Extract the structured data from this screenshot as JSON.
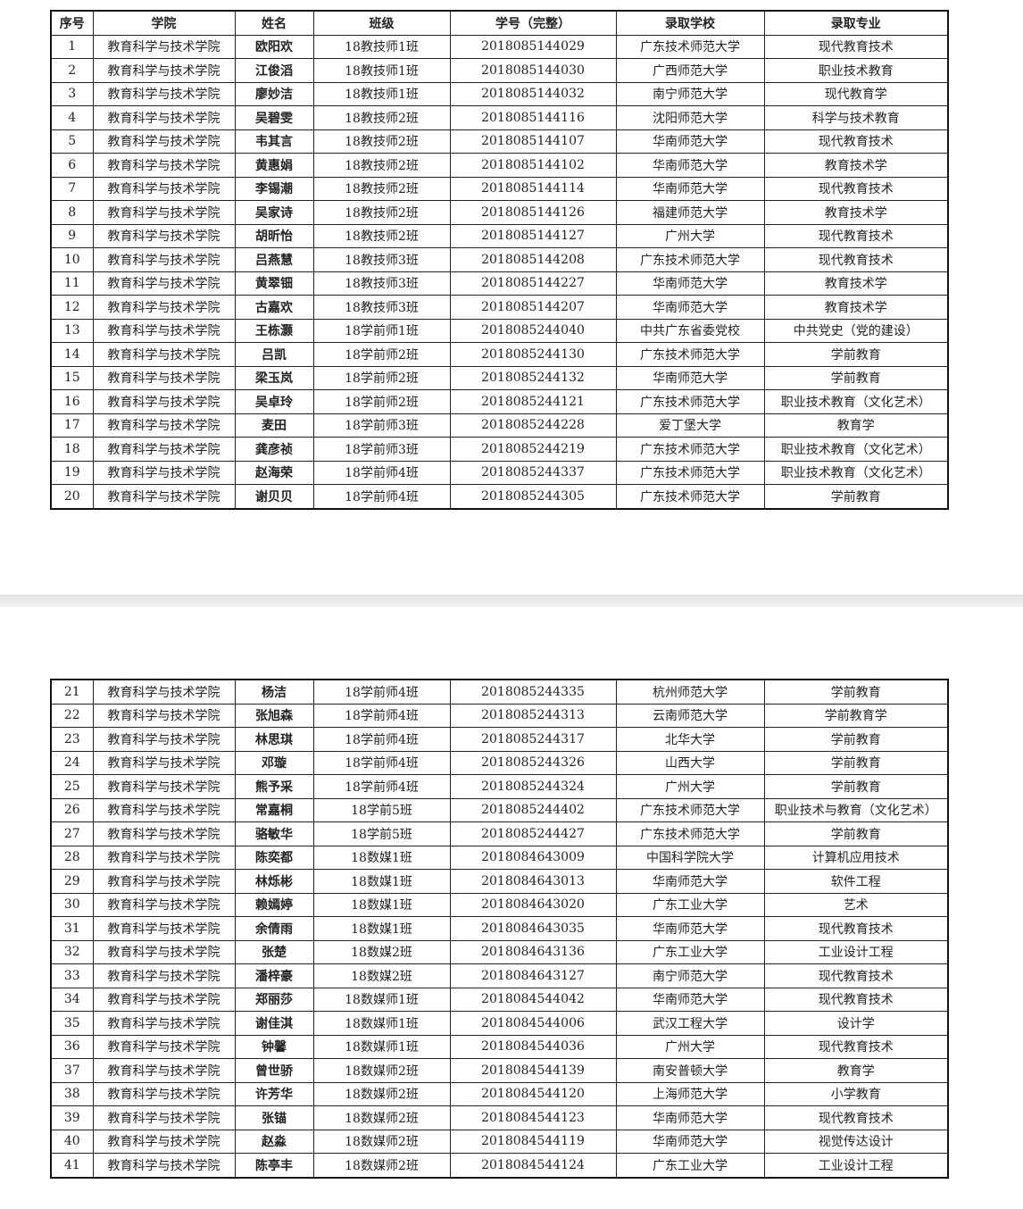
{
  "headers": [
    "序号",
    "学院",
    "姓名",
    "班级",
    "学号（完整）",
    "录取学校",
    "录取专业"
  ],
  "page1_rows": [
    [
      "1",
      "教育科学与技术学院",
      "欧阳欢",
      "18教技师1班",
      "2018085144029",
      "广东技术师范大学",
      "现代教育技术"
    ],
    [
      "2",
      "教育科学与技术学院",
      "江俊滔",
      "18教技师1班",
      "2018085144030",
      "广西师范大学",
      "职业技术教育"
    ],
    [
      "3",
      "教育科学与技术学院",
      "廖妙洁",
      "18教技师1班",
      "2018085144032",
      "南宁师范大学",
      "现代教育学"
    ],
    [
      "4",
      "教育科学与技术学院",
      "吴碧雯",
      "18教技师2班",
      "2018085144116",
      "沈阳师范大学",
      "科学与技术教育"
    ],
    [
      "5",
      "教育科学与技术学院",
      "韦其言",
      "18教技师2班",
      "2018085144107",
      "华南师范大学",
      "现代教育技术"
    ],
    [
      "6",
      "教育科学与技术学院",
      "黄惠娟",
      "18教技师2班",
      "2018085144102",
      "华南师范大学",
      "教育技术学"
    ],
    [
      "7",
      "教育科学与技术学院",
      "李锡潮",
      "18教技师2班",
      "2018085144114",
      "华南师范大学",
      "现代教育技术"
    ],
    [
      "8",
      "教育科学与技术学院",
      "吴家诗",
      "18教技师2班",
      "2018085144126",
      "福建师范大学",
      "教育技术学"
    ],
    [
      "9",
      "教育科学与技术学院",
      "胡昕怡",
      "18教技师2班",
      "2018085144127",
      "广州大学",
      "现代教育技术"
    ],
    [
      "10",
      "教育科学与技术学院",
      "吕燕慧",
      "18教技师3班",
      "2018085144208",
      "广东技术师范大学",
      "现代教育技术"
    ],
    [
      "11",
      "教育科学与技术学院",
      "黄翠钿",
      "18教技师3班",
      "2018085144227",
      "华南师范大学",
      "教育技术学"
    ],
    [
      "12",
      "教育科学与技术学院",
      "古嘉欢",
      "18教技师3班",
      "2018085144207",
      "华南师范大学",
      "教育技术学"
    ],
    [
      "13",
      "教育科学与技术学院",
      "王栋灏",
      "18学前师1班",
      "2018085244040",
      "中共广东省委党校",
      "中共党史（党的建设）"
    ],
    [
      "14",
      "教育科学与技术学院",
      "吕凯",
      "18学前师2班",
      "2018085244130",
      "广东技术师范大学",
      "学前教育"
    ],
    [
      "15",
      "教育科学与技术学院",
      "梁玉岚",
      "18学前师2班",
      "2018085244132",
      "华南师范大学",
      "学前教育"
    ],
    [
      "16",
      "教育科学与技术学院",
      "吴卓玲",
      "18学前师2班",
      "2018085244121",
      "广东技术师范大学",
      "职业技术教育（文化艺术）"
    ],
    [
      "17",
      "教育科学与技术学院",
      "麦田",
      "18学前师3班",
      "2018085244228",
      "爱丁堡大学",
      "教育学"
    ],
    [
      "18",
      "教育科学与技术学院",
      "龚彦祯",
      "18学前师3班",
      "2018085244219",
      "广东技术师范大学",
      "职业技术教育（文化艺术）"
    ],
    [
      "19",
      "教育科学与技术学院",
      "赵海荣",
      "18学前师4班",
      "2018085244337",
      "广东技术师范大学",
      "职业技术教育（文化艺术）"
    ],
    [
      "20",
      "教育科学与技术学院",
      "谢贝贝",
      "18学前师4班",
      "2018085244305",
      "广东技术师范大学",
      "学前教育"
    ]
  ],
  "page2_rows": [
    [
      "21",
      "教育科学与技术学院",
      "杨洁",
      "18学前师4班",
      "2018085244335",
      "杭州师范大学",
      "学前教育"
    ],
    [
      "22",
      "教育科学与技术学院",
      "张旭森",
      "18学前师4班",
      "2018085244313",
      "云南师范大学",
      "学前教育学"
    ],
    [
      "23",
      "教育科学与技术学院",
      "林思琪",
      "18学前师4班",
      "2018085244317",
      "北华大学",
      "学前教育"
    ],
    [
      "24",
      "教育科学与技术学院",
      "邓璇",
      "18学前师4班",
      "2018085244326",
      "山西大学",
      "学前教育"
    ],
    [
      "25",
      "教育科学与技术学院",
      "熊予采",
      "18学前师4班",
      "2018085244324",
      "广州大学",
      "学前教育"
    ],
    [
      "26",
      "教育科学与技术学院",
      "常嘉桐",
      "18学前5班",
      "2018085244402",
      "广东技术师范大学",
      "职业技术与教育（文化艺术）"
    ],
    [
      "27",
      "教育科学与技术学院",
      "骆敏华",
      "18学前5班",
      "2018085244427",
      "广东技术师范大学",
      "学前教育"
    ],
    [
      "28",
      "教育科学与技术学院",
      "陈奕都",
      "18数媒1班",
      "2018084643009",
      "中国科学院大学",
      "计算机应用技术"
    ],
    [
      "29",
      "教育科学与技术学院",
      "林烁彬",
      "18数媒1班",
      "2018084643013",
      "华南师范大学",
      "软件工程"
    ],
    [
      "30",
      "教育科学与技术学院",
      "赖嫣婷",
      "18数媒1班",
      "2018084643020",
      "广东工业大学",
      "艺术"
    ],
    [
      "31",
      "教育科学与技术学院",
      "余倩雨",
      "18数媒1班",
      "2018084643035",
      "华南师范大学",
      "现代教育技术"
    ],
    [
      "32",
      "教育科学与技术学院",
      "张楚",
      "18数媒2班",
      "2018084643136",
      "广东工业大学",
      "工业设计工程"
    ],
    [
      "33",
      "教育科学与技术学院",
      "潘梓豪",
      "18数媒2班",
      "2018084643127",
      "南宁师范大学",
      "现代教育技术"
    ],
    [
      "34",
      "教育科学与技术学院",
      "郑丽莎",
      "18数媒师1班",
      "2018084544042",
      "华南师范大学",
      "现代教育技术"
    ],
    [
      "35",
      "教育科学与技术学院",
      "谢佳淇",
      "18数媒师1班",
      "2018084544006",
      "武汉工程大学",
      "设计学"
    ],
    [
      "36",
      "教育科学与技术学院",
      "钟馨",
      "18数媒师1班",
      "2018084544036",
      "广州大学",
      "现代教育技术"
    ],
    [
      "37",
      "教育科学与技术学院",
      "曾世骄",
      "18数媒师2班",
      "2018084544139",
      "南安普顿大学",
      "教育学"
    ],
    [
      "38",
      "教育科学与技术学院",
      "许芳华",
      "18数媒师2班",
      "2018084544120",
      "上海师范大学",
      "小学教育"
    ],
    [
      "39",
      "教育科学与技术学院",
      "张锚",
      "18数媒师2班",
      "2018084544123",
      "华南师范大学",
      "现代教育技术"
    ],
    [
      "40",
      "教育科学与技术学院",
      "赵淼",
      "18数媒师2班",
      "2018084544119",
      "华南师范大学",
      "视觉传达设计"
    ],
    [
      "41",
      "教育科学与技术学院",
      "陈亭丰",
      "18数媒师2班",
      "2018084544124",
      "广东工业大学",
      "工业设计工程"
    ]
  ]
}
